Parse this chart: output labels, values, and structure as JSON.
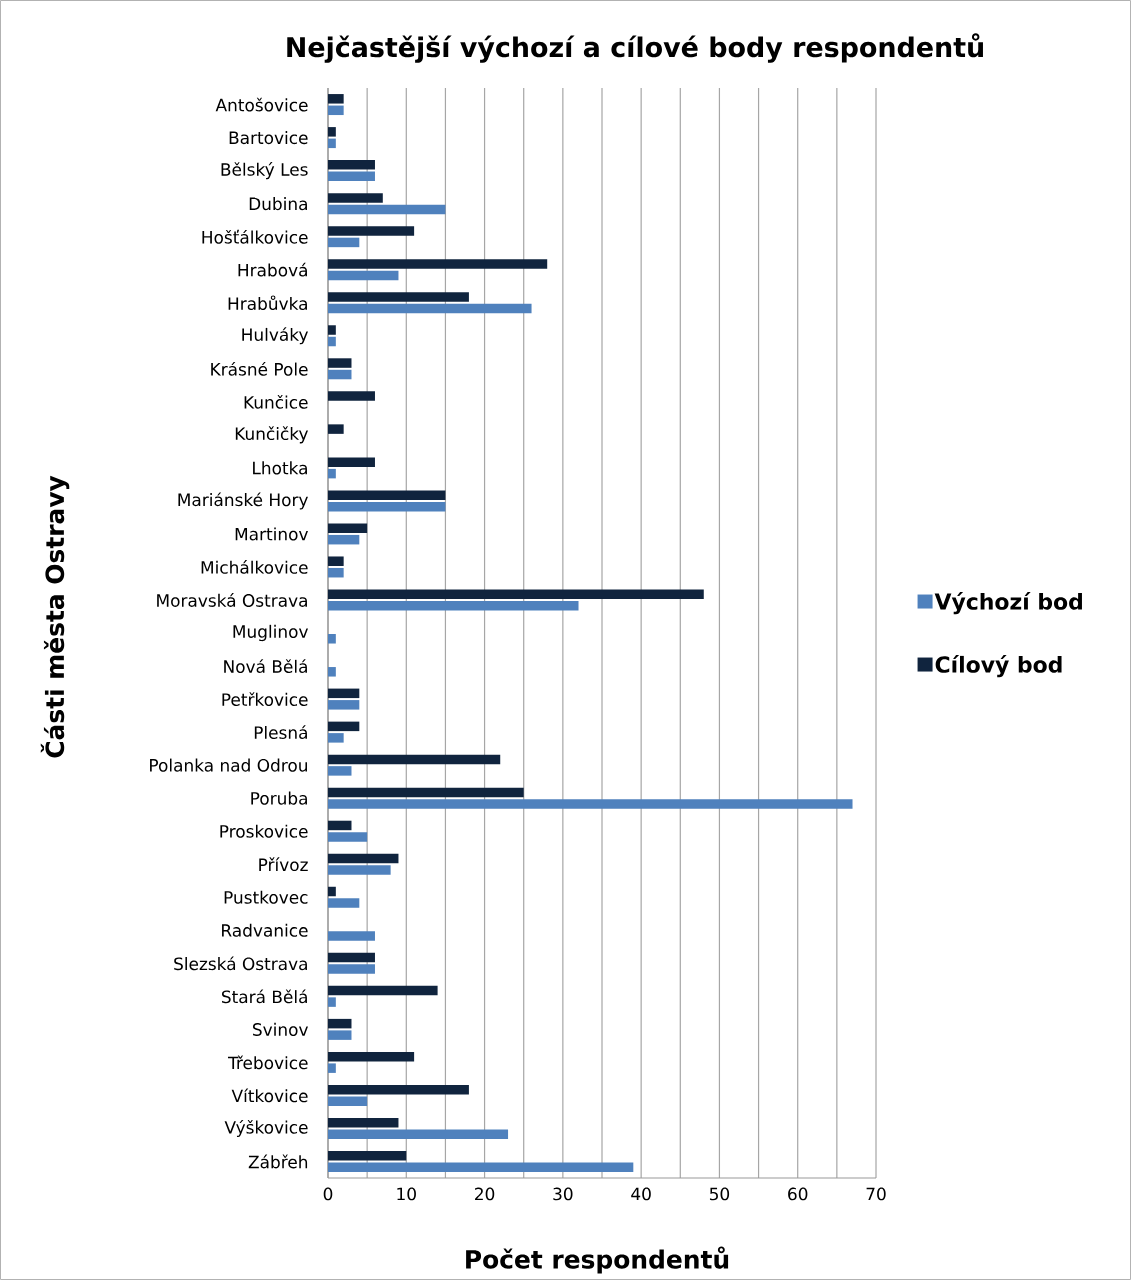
{
  "chart_data": {
    "type": "bar",
    "orientation": "horizontal",
    "title": "Nejčastější výchozí a cílové body respondentů",
    "xlabel": "Počet respondentů",
    "ylabel": "Části města Ostravy",
    "categories": [
      "Antošovice",
      "Bartovice",
      "Bělský Les",
      "Dubina",
      "Hošťálkovice",
      "Hrabová",
      "Hrabůvka",
      "Hulváky",
      "Krásné Pole",
      "Kunčice",
      "Kunčičky",
      "Lhotka",
      "Mariánské Hory",
      "Martinov",
      "Michálkovice",
      "Moravská Ostrava",
      "Muglinov",
      "Nová Bělá",
      "Petřkovice",
      "Plesná",
      "Polanka nad Odrou",
      "Poruba",
      "Proskovice",
      "Přívoz",
      "Pustkovec",
      "Radvanice",
      "Slezská Ostrava",
      "Stará Bělá",
      "Svinov",
      "Třebovice",
      "Vítkovice",
      "Výškovice",
      "Zábřeh"
    ],
    "series": [
      {
        "name": "Výchozí bod",
        "color": "#4f81bd",
        "values": [
          2,
          1,
          6,
          15,
          4,
          9,
          26,
          1,
          3,
          0,
          0,
          1,
          15,
          4,
          2,
          32,
          1,
          1,
          4,
          2,
          3,
          67,
          5,
          8,
          4,
          6,
          6,
          1,
          3,
          1,
          5,
          23,
          39
        ]
      },
      {
        "name": "Cílový bod",
        "color": "#10243e",
        "values": [
          2,
          1,
          6,
          7,
          11,
          28,
          18,
          1,
          3,
          6,
          2,
          6,
          15,
          5,
          2,
          48,
          0,
          0,
          4,
          4,
          22,
          25,
          3,
          9,
          1,
          0,
          6,
          14,
          3,
          11,
          18,
          9,
          10
        ]
      }
    ],
    "xlim": [
      0,
      70
    ],
    "xticks": [
      0,
      {
        "value": 5,
        "label": null
      },
      10,
      {
        "value": 15,
        "label": null
      },
      20,
      {
        "value": 25,
        "label": null
      },
      30,
      {
        "value": 35,
        "label": null
      },
      40,
      {
        "value": 45,
        "label": null
      },
      50,
      {
        "value": 55,
        "label": null
      },
      60,
      {
        "value": 65,
        "label": null
      },
      70
    ],
    "grid": "x",
    "legend": "right"
  }
}
